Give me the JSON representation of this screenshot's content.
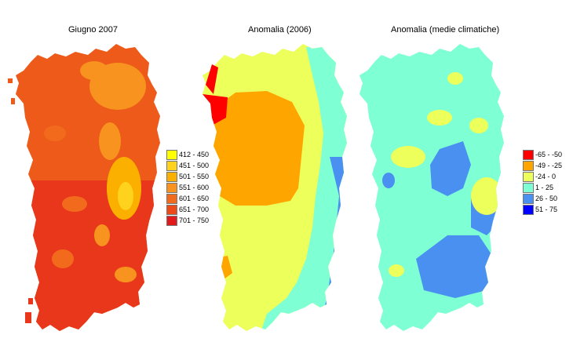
{
  "panels": [
    {
      "id": "giugno",
      "title": "Giugno 2007",
      "legend": [
        {
          "label": "412 - 450",
          "color": "#ffff00"
        },
        {
          "label": "451 - 500",
          "color": "#ffd21e"
        },
        {
          "label": "501 - 550",
          "color": "#fbb000"
        },
        {
          "label": "551 - 600",
          "color": "#f7931e"
        },
        {
          "label": "601 - 650",
          "color": "#f26b1d"
        },
        {
          "label": "651 - 700",
          "color": "#ed4a18"
        },
        {
          "label": "701 - 750",
          "color": "#e31a1c"
        }
      ]
    },
    {
      "id": "anomalia-2006",
      "title": "Anomalia (2006)",
      "legend": []
    },
    {
      "id": "anomalia-medie",
      "title": "Anomalia (medie climatiche)",
      "legend": [
        {
          "label": "-65 - -50",
          "color": "#ff0000"
        },
        {
          "label": "-49 - -25",
          "color": "#ffa500"
        },
        {
          "label": "-24 - 0",
          "color": "#ecff5a"
        },
        {
          "label": "1 - 25",
          "color": "#7fffd4"
        },
        {
          "label": "26 - 50",
          "color": "#4a90f0"
        },
        {
          "label": "51 - 75",
          "color": "#0000ff"
        }
      ]
    }
  ]
}
